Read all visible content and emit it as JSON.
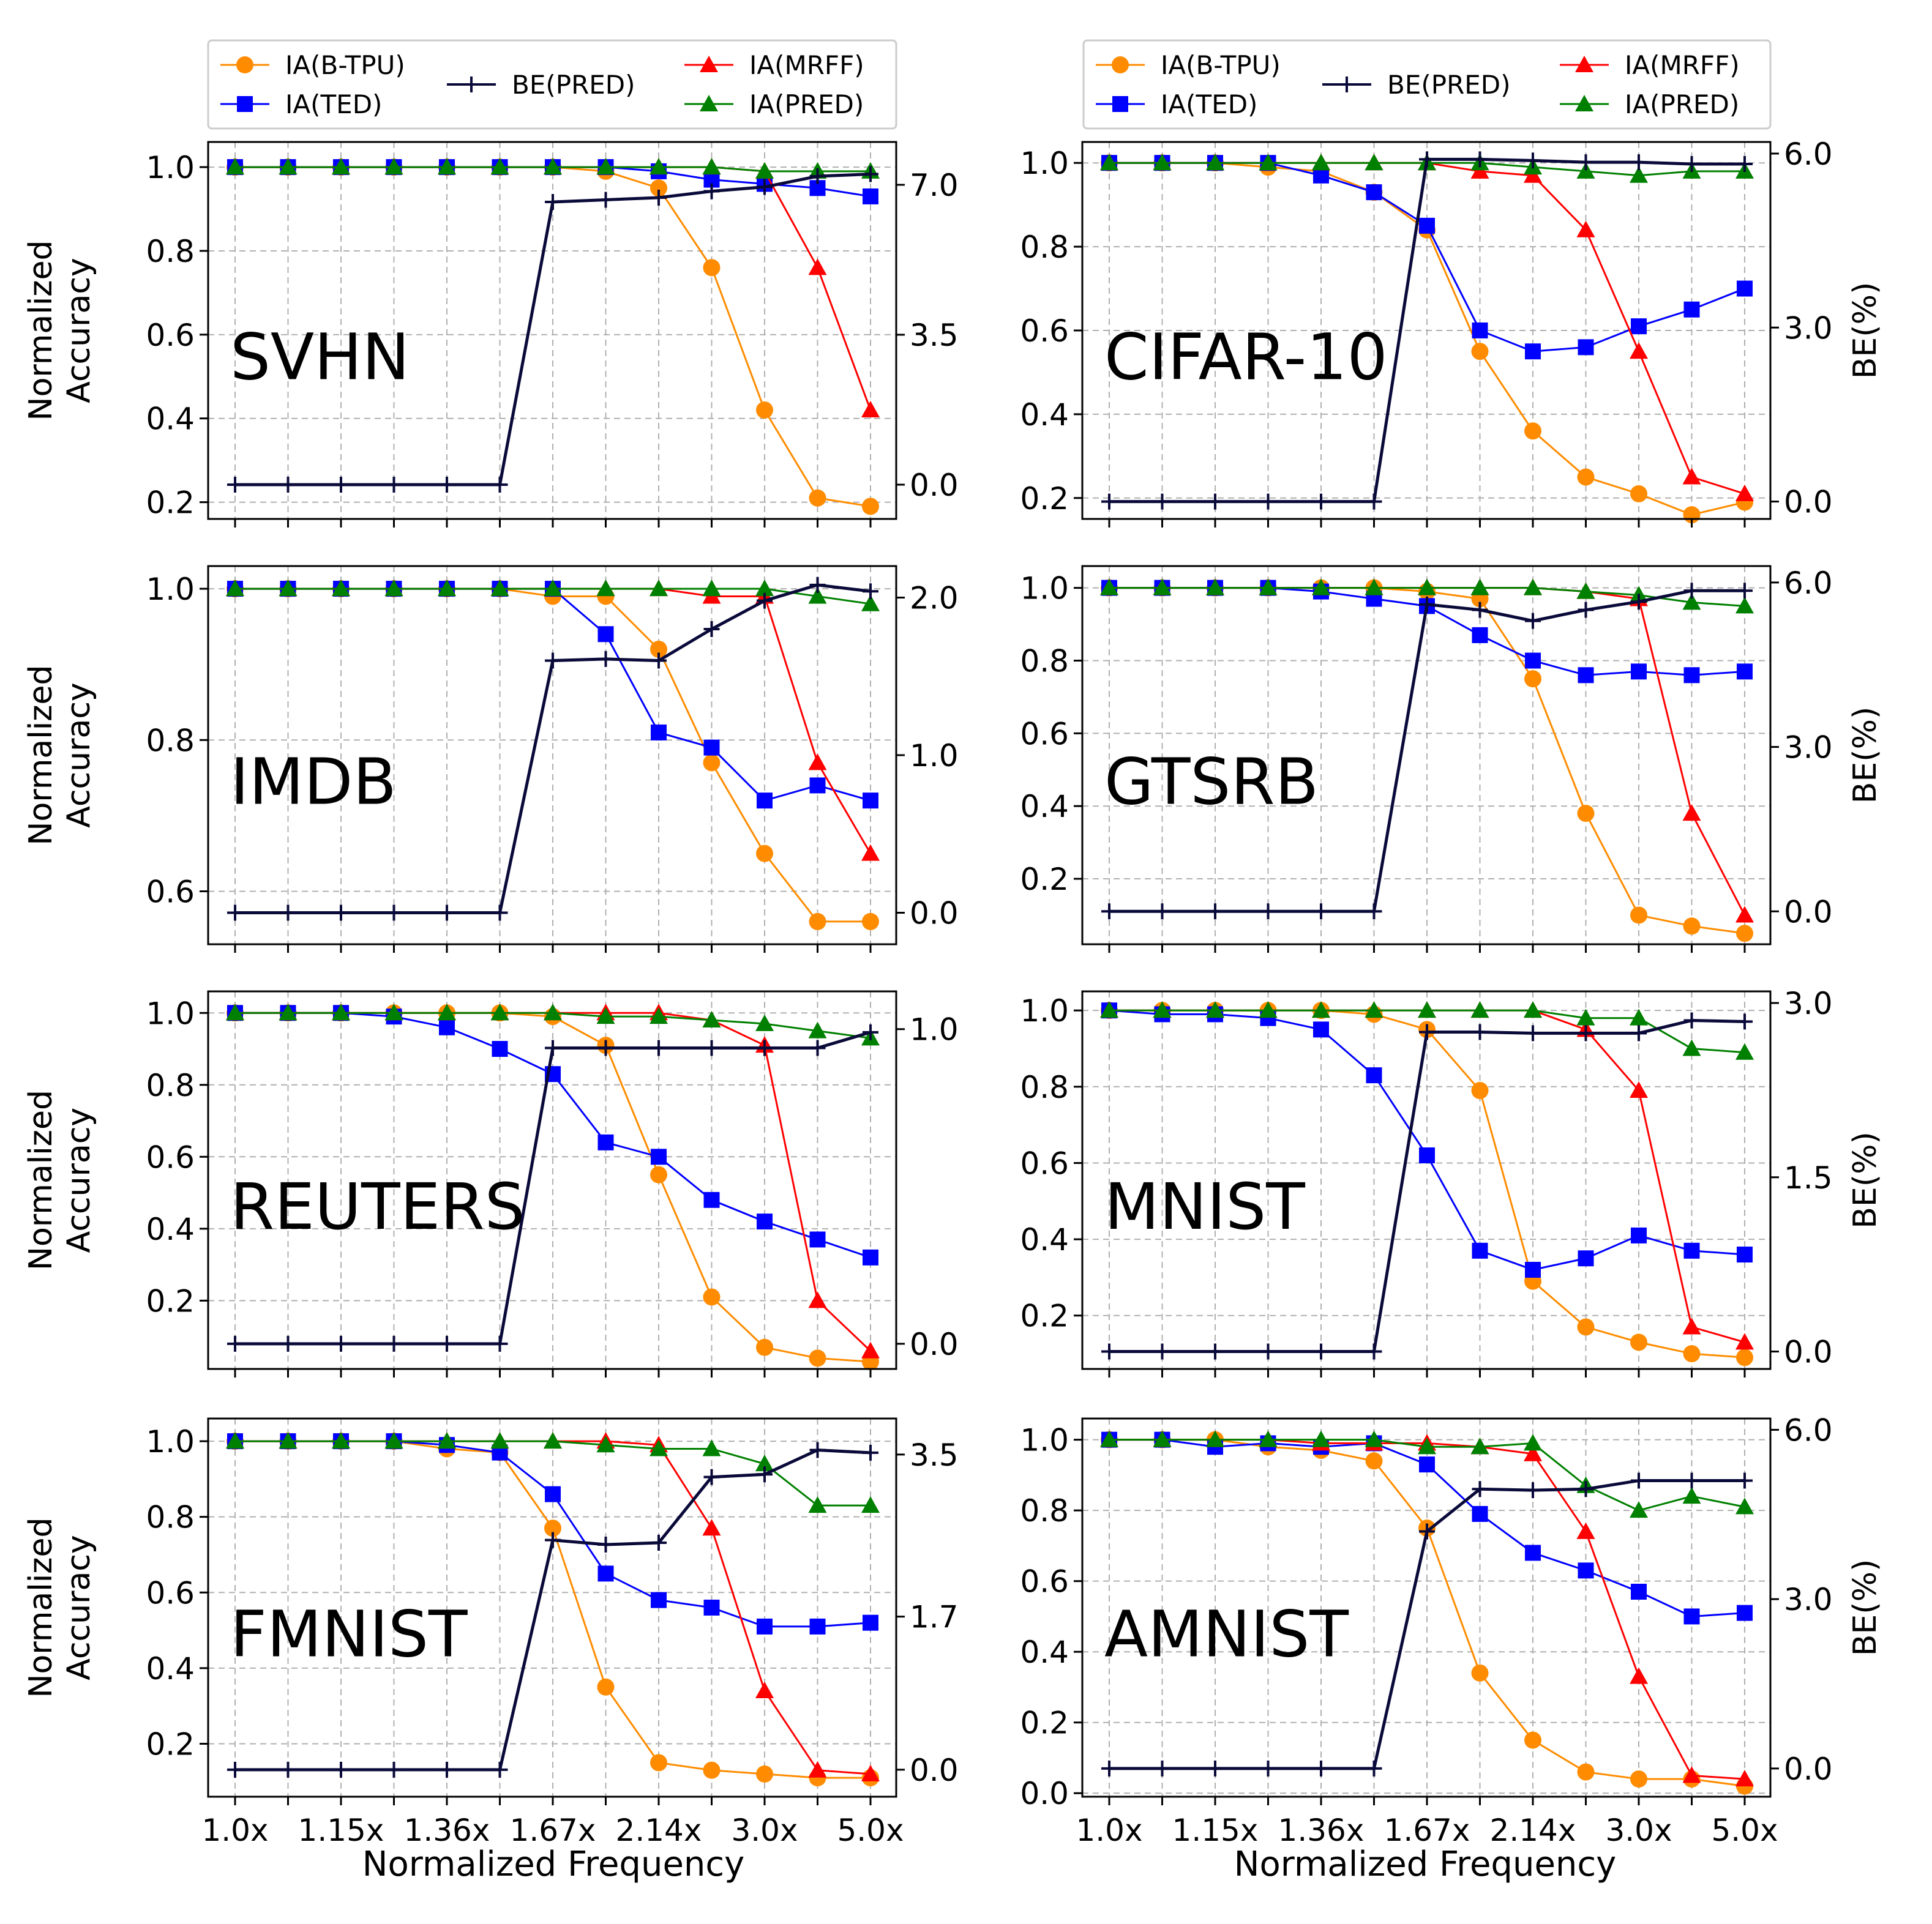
{
  "figure": {
    "legend_labels": {
      "b_tpu": "IA(B-TPU)",
      "ted": "IA(TED)",
      "be_pred": "BE(PRED)",
      "mrff": "IA(MRFF)",
      "pred": "IA(PRED)"
    },
    "xlabel": "Normalized Frequency",
    "ylabel_left": "Normalized Accuracy",
    "ylabel_right": "BE(%)",
    "x_ticks": [
      "1.0x",
      "1.15x",
      "1.36x",
      "1.67x",
      "2.14x",
      "3.0x",
      "5.0x"
    ],
    "colors": {
      "b_tpu": "#ff8c00",
      "ted": "#0000ff",
      "be_pred": "#0a0a3a",
      "mrff": "#ff0000",
      "pred": "#008000"
    }
  },
  "chart_data": [
    {
      "type": "line",
      "title": "SVHN",
      "x": [
        1,
        2,
        3,
        4,
        5,
        6,
        7,
        8,
        9,
        10,
        11,
        12,
        13
      ],
      "ylim": [
        0.16,
        1.06
      ],
      "yticks": [
        "0.2",
        "0.4",
        "0.6",
        "0.8",
        "1.0"
      ],
      "y2lim": [
        -0.8,
        8.0
      ],
      "y2ticks": [
        "0.0",
        "3.5",
        "7.0"
      ],
      "y2label": "",
      "series": [
        {
          "key": "b_tpu",
          "marker": "circle",
          "values": [
            1.0,
            1.0,
            1.0,
            1.0,
            1.0,
            1.0,
            1.0,
            0.99,
            0.95,
            0.76,
            0.42,
            0.21,
            0.19
          ]
        },
        {
          "key": "ted",
          "marker": "square",
          "values": [
            1.0,
            1.0,
            1.0,
            1.0,
            1.0,
            1.0,
            1.0,
            1.0,
            0.99,
            0.97,
            0.96,
            0.95,
            0.93
          ]
        },
        {
          "key": "mrff",
          "marker": "triangle",
          "values": [
            1.0,
            1.0,
            1.0,
            1.0,
            1.0,
            1.0,
            1.0,
            1.0,
            1.0,
            1.0,
            0.99,
            0.76,
            0.42
          ]
        },
        {
          "key": "pred",
          "marker": "triangle",
          "values": [
            1.0,
            1.0,
            1.0,
            1.0,
            1.0,
            1.0,
            1.0,
            1.0,
            1.0,
            1.0,
            0.99,
            0.99,
            0.99
          ]
        },
        {
          "key": "be_pred",
          "marker": "plus",
          "axis": "right",
          "values": [
            0.0,
            0.0,
            0.0,
            0.0,
            0.0,
            0.0,
            6.6,
            6.65,
            6.7,
            6.85,
            6.95,
            7.2,
            7.25
          ]
        }
      ]
    },
    {
      "type": "line",
      "title": "CIFAR-10",
      "x": [
        1,
        2,
        3,
        4,
        5,
        6,
        7,
        8,
        9,
        10,
        11,
        12,
        13
      ],
      "ylim": [
        0.15,
        1.05
      ],
      "yticks": [
        "0.2",
        "0.4",
        "0.6",
        "0.8",
        "1.0"
      ],
      "y2lim": [
        -0.3,
        6.2
      ],
      "y2ticks": [
        "0.0",
        "3.0",
        "6.0"
      ],
      "y2label": "BE(%)",
      "series": [
        {
          "key": "b_tpu",
          "marker": "circle",
          "values": [
            1.0,
            1.0,
            1.0,
            0.99,
            0.98,
            0.93,
            0.84,
            0.55,
            0.36,
            0.25,
            0.21,
            0.16,
            0.19
          ]
        },
        {
          "key": "ted",
          "marker": "square",
          "values": [
            1.0,
            1.0,
            1.0,
            1.0,
            0.97,
            0.93,
            0.85,
            0.6,
            0.55,
            0.56,
            0.61,
            0.65,
            0.7
          ]
        },
        {
          "key": "mrff",
          "marker": "triangle",
          "values": [
            1.0,
            1.0,
            1.0,
            1.0,
            1.0,
            1.0,
            1.0,
            0.98,
            0.97,
            0.84,
            0.55,
            0.25,
            0.21
          ]
        },
        {
          "key": "pred",
          "marker": "triangle",
          "values": [
            1.0,
            1.0,
            1.0,
            1.0,
            1.0,
            1.0,
            1.0,
            1.0,
            0.99,
            0.98,
            0.97,
            0.98,
            0.98
          ]
        },
        {
          "key": "be_pred",
          "marker": "plus",
          "axis": "right",
          "values": [
            0.0,
            0.0,
            0.0,
            0.0,
            0.0,
            0.0,
            5.9,
            5.9,
            5.88,
            5.85,
            5.85,
            5.82,
            5.82
          ]
        }
      ]
    },
    {
      "type": "line",
      "title": "IMDB",
      "x": [
        1,
        2,
        3,
        4,
        5,
        6,
        7,
        8,
        9,
        10,
        11,
        12,
        13
      ],
      "ylim": [
        0.53,
        1.03
      ],
      "yticks": [
        "0.6",
        "0.8",
        "1.0"
      ],
      "y2lim": [
        -0.2,
        2.2
      ],
      "y2ticks": [
        "0.0",
        "1.0",
        "2.0"
      ],
      "y2label": "",
      "series": [
        {
          "key": "b_tpu",
          "marker": "circle",
          "values": [
            1.0,
            1.0,
            1.0,
            1.0,
            1.0,
            1.0,
            0.99,
            0.99,
            0.92,
            0.77,
            0.65,
            0.56,
            0.56
          ]
        },
        {
          "key": "ted",
          "marker": "square",
          "values": [
            1.0,
            1.0,
            1.0,
            1.0,
            1.0,
            1.0,
            1.0,
            0.94,
            0.81,
            0.79,
            0.72,
            0.74,
            0.72
          ]
        },
        {
          "key": "mrff",
          "marker": "triangle",
          "values": [
            1.0,
            1.0,
            1.0,
            1.0,
            1.0,
            1.0,
            1.0,
            1.0,
            1.0,
            0.99,
            0.99,
            0.77,
            0.65
          ]
        },
        {
          "key": "pred",
          "marker": "triangle",
          "values": [
            1.0,
            1.0,
            1.0,
            1.0,
            1.0,
            1.0,
            1.0,
            1.0,
            1.0,
            1.0,
            1.0,
            0.99,
            0.98
          ]
        },
        {
          "key": "be_pred",
          "marker": "plus",
          "axis": "right",
          "values": [
            0.0,
            0.0,
            0.0,
            0.0,
            0.0,
            0.0,
            1.6,
            1.61,
            1.6,
            1.8,
            1.98,
            2.08,
            2.04
          ]
        }
      ]
    },
    {
      "type": "line",
      "title": "GTSRB",
      "x": [
        1,
        2,
        3,
        4,
        5,
        6,
        7,
        8,
        9,
        10,
        11,
        12,
        13
      ],
      "ylim": [
        0.02,
        1.06
      ],
      "yticks": [
        "0.2",
        "0.4",
        "0.6",
        "0.8",
        "1.0"
      ],
      "y2lim": [
        -0.6,
        6.3
      ],
      "y2ticks": [
        "0.0",
        "3.0",
        "6.0"
      ],
      "y2label": "BE(%)",
      "series": [
        {
          "key": "b_tpu",
          "marker": "circle",
          "values": [
            1.0,
            1.0,
            1.0,
            1.0,
            1.0,
            1.0,
            0.99,
            0.97,
            0.75,
            0.38,
            0.1,
            0.07,
            0.05
          ]
        },
        {
          "key": "ted",
          "marker": "square",
          "values": [
            1.0,
            1.0,
            1.0,
            1.0,
            0.99,
            0.97,
            0.95,
            0.87,
            0.8,
            0.76,
            0.77,
            0.76,
            0.77
          ]
        },
        {
          "key": "mrff",
          "marker": "triangle",
          "values": [
            1.0,
            1.0,
            1.0,
            1.0,
            1.0,
            1.0,
            1.0,
            1.0,
            1.0,
            0.99,
            0.97,
            0.38,
            0.1
          ]
        },
        {
          "key": "pred",
          "marker": "triangle",
          "values": [
            1.0,
            1.0,
            1.0,
            1.0,
            1.0,
            1.0,
            1.0,
            1.0,
            1.0,
            0.99,
            0.98,
            0.96,
            0.95
          ]
        },
        {
          "key": "be_pred",
          "marker": "plus",
          "axis": "right",
          "values": [
            0.0,
            0.0,
            0.0,
            0.0,
            0.0,
            0.0,
            5.6,
            5.5,
            5.3,
            5.5,
            5.65,
            5.85,
            5.85
          ]
        }
      ]
    },
    {
      "type": "line",
      "title": "REUTERS",
      "x": [
        1,
        2,
        3,
        4,
        5,
        6,
        7,
        8,
        9,
        10,
        11,
        12,
        13
      ],
      "ylim": [
        0.01,
        1.06
      ],
      "yticks": [
        "0.2",
        "0.4",
        "0.6",
        "0.8",
        "1.0"
      ],
      "y2lim": [
        -0.08,
        1.12
      ],
      "y2ticks": [
        "0.0",
        "1.0"
      ],
      "y2label": "",
      "series": [
        {
          "key": "b_tpu",
          "marker": "circle",
          "values": [
            1.0,
            1.0,
            1.0,
            1.0,
            1.0,
            1.0,
            0.99,
            0.91,
            0.55,
            0.21,
            0.07,
            0.04,
            0.03
          ]
        },
        {
          "key": "ted",
          "marker": "square",
          "values": [
            1.0,
            1.0,
            1.0,
            0.99,
            0.96,
            0.9,
            0.83,
            0.64,
            0.6,
            0.48,
            0.42,
            0.37,
            0.32
          ]
        },
        {
          "key": "mrff",
          "marker": "triangle",
          "values": [
            1.0,
            1.0,
            1.0,
            1.0,
            1.0,
            1.0,
            1.0,
            1.0,
            1.0,
            0.98,
            0.91,
            0.2,
            0.06
          ]
        },
        {
          "key": "pred",
          "marker": "triangle",
          "values": [
            1.0,
            1.0,
            1.0,
            1.0,
            1.0,
            1.0,
            1.0,
            0.99,
            0.99,
            0.98,
            0.97,
            0.95,
            0.93
          ]
        },
        {
          "key": "be_pred",
          "marker": "plus",
          "axis": "right",
          "values": [
            0.0,
            0.0,
            0.0,
            0.0,
            0.0,
            0.0,
            0.94,
            0.94,
            0.94,
            0.94,
            0.94,
            0.94,
            0.99
          ]
        }
      ]
    },
    {
      "type": "line",
      "title": "MNIST",
      "x": [
        1,
        2,
        3,
        4,
        5,
        6,
        7,
        8,
        9,
        10,
        11,
        12,
        13
      ],
      "ylim": [
        0.06,
        1.05
      ],
      "yticks": [
        "0.2",
        "0.4",
        "0.6",
        "0.8",
        "1.0"
      ],
      "y2lim": [
        -0.15,
        3.1
      ],
      "y2ticks": [
        "0.0",
        "1.5",
        "3.0"
      ],
      "y2label": "BE(%)",
      "series": [
        {
          "key": "b_tpu",
          "marker": "circle",
          "values": [
            1.0,
            1.0,
            1.0,
            1.0,
            1.0,
            0.99,
            0.95,
            0.79,
            0.29,
            0.17,
            0.13,
            0.1,
            0.09
          ]
        },
        {
          "key": "ted",
          "marker": "square",
          "values": [
            1.0,
            0.99,
            0.99,
            0.98,
            0.95,
            0.83,
            0.62,
            0.37,
            0.32,
            0.35,
            0.41,
            0.37,
            0.36
          ]
        },
        {
          "key": "mrff",
          "marker": "triangle",
          "values": [
            1.0,
            1.0,
            1.0,
            1.0,
            1.0,
            1.0,
            1.0,
            1.0,
            1.0,
            0.95,
            0.79,
            0.17,
            0.13
          ]
        },
        {
          "key": "pred",
          "marker": "triangle",
          "values": [
            1.0,
            1.0,
            1.0,
            1.0,
            1.0,
            1.0,
            1.0,
            1.0,
            1.0,
            0.98,
            0.98,
            0.9,
            0.89
          ]
        },
        {
          "key": "be_pred",
          "marker": "plus",
          "axis": "right",
          "values": [
            0.0,
            0.0,
            0.0,
            0.0,
            0.0,
            0.0,
            2.75,
            2.75,
            2.74,
            2.74,
            2.74,
            2.85,
            2.84
          ]
        }
      ]
    },
    {
      "type": "line",
      "title": "FMNIST",
      "x": [
        1,
        2,
        3,
        4,
        5,
        6,
        7,
        8,
        9,
        10,
        11,
        12,
        13
      ],
      "ylim": [
        0.06,
        1.06
      ],
      "yticks": [
        "0.2",
        "0.4",
        "0.6",
        "0.8",
        "1.0"
      ],
      "y2lim": [
        -0.3,
        3.9
      ],
      "y2ticks": [
        "0.0",
        "1.7",
        "3.5"
      ],
      "y2label": "",
      "series": [
        {
          "key": "b_tpu",
          "marker": "circle",
          "values": [
            1.0,
            1.0,
            1.0,
            1.0,
            0.98,
            0.97,
            0.77,
            0.35,
            0.15,
            0.13,
            0.12,
            0.11,
            0.11
          ]
        },
        {
          "key": "ted",
          "marker": "square",
          "values": [
            1.0,
            1.0,
            1.0,
            1.0,
            0.99,
            0.97,
            0.86,
            0.65,
            0.58,
            0.56,
            0.51,
            0.51,
            0.52
          ]
        },
        {
          "key": "mrff",
          "marker": "triangle",
          "values": [
            1.0,
            1.0,
            1.0,
            1.0,
            1.0,
            1.0,
            1.0,
            1.0,
            0.99,
            0.77,
            0.34,
            0.13,
            0.12
          ]
        },
        {
          "key": "pred",
          "marker": "triangle",
          "values": [
            1.0,
            1.0,
            1.0,
            1.0,
            1.0,
            1.0,
            1.0,
            0.99,
            0.98,
            0.98,
            0.94,
            0.83,
            0.83
          ]
        },
        {
          "key": "be_pred",
          "marker": "plus",
          "axis": "right",
          "values": [
            0.0,
            0.0,
            0.0,
            0.0,
            0.0,
            0.0,
            2.55,
            2.5,
            2.52,
            3.25,
            3.28,
            3.55,
            3.52
          ]
        }
      ]
    },
    {
      "type": "line",
      "title": "AMNIST",
      "x": [
        1,
        2,
        3,
        4,
        5,
        6,
        7,
        8,
        9,
        10,
        11,
        12,
        13
      ],
      "ylim": [
        -0.01,
        1.06
      ],
      "yticks": [
        "0.0",
        "0.2",
        "0.4",
        "0.6",
        "0.8",
        "1.0"
      ],
      "y2lim": [
        -0.5,
        6.2
      ],
      "y2ticks": [
        "0.0",
        "3.0",
        "6.0"
      ],
      "y2label": "BE(%)",
      "series": [
        {
          "key": "b_tpu",
          "marker": "circle",
          "values": [
            1.0,
            1.0,
            1.0,
            0.98,
            0.97,
            0.94,
            0.75,
            0.34,
            0.15,
            0.06,
            0.04,
            0.04,
            0.02
          ]
        },
        {
          "key": "ted",
          "marker": "square",
          "values": [
            1.0,
            1.0,
            0.98,
            0.99,
            0.98,
            0.99,
            0.93,
            0.79,
            0.68,
            0.63,
            0.57,
            0.5,
            0.51
          ]
        },
        {
          "key": "mrff",
          "marker": "triangle",
          "values": [
            1.0,
            1.0,
            1.0,
            1.0,
            0.99,
            0.99,
            0.99,
            0.98,
            0.96,
            0.74,
            0.33,
            0.05,
            0.04
          ]
        },
        {
          "key": "pred",
          "marker": "triangle",
          "values": [
            1.0,
            1.0,
            1.0,
            1.0,
            1.0,
            1.0,
            0.98,
            0.98,
            0.99,
            0.87,
            0.8,
            0.84,
            0.81
          ]
        },
        {
          "key": "be_pred",
          "marker": "plus",
          "axis": "right",
          "values": [
            0.0,
            0.0,
            0.0,
            0.0,
            0.0,
            0.0,
            4.2,
            4.95,
            4.93,
            4.95,
            5.1,
            5.1,
            5.1
          ]
        }
      ]
    }
  ]
}
